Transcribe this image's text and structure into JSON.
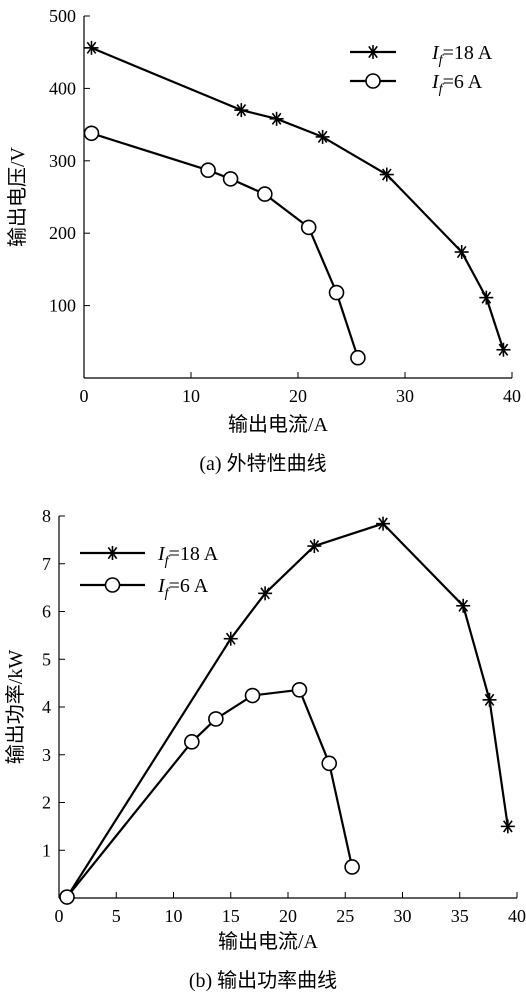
{
  "chart_data": [
    {
      "type": "line",
      "caption": "(a) 外特性曲线",
      "xlabel": "输出电流/A",
      "ylabel": "输出电压/V",
      "xlim": [
        0,
        40
      ],
      "ylim": [
        0,
        500
      ],
      "xticks": [
        0,
        10,
        20,
        30,
        40
      ],
      "yticks": [
        100,
        200,
        300,
        400,
        500
      ],
      "grid": false,
      "legend_position": "top-right",
      "series": [
        {
          "legend_main": "I",
          "legend_sub": "f",
          "legend_rest": "=18 A",
          "marker": "asterisk",
          "x": [
            0.7,
            14.7,
            18.0,
            22.3,
            28.3,
            35.3,
            37.6,
            39.2
          ],
          "y": [
            456,
            370,
            358,
            333,
            281,
            174,
            111,
            39
          ]
        },
        {
          "legend_main": "I",
          "legend_sub": "f",
          "legend_rest": "=6 A",
          "marker": "circle",
          "x": [
            0.7,
            11.6,
            13.7,
            16.9,
            21.0,
            23.6,
            25.6
          ],
          "y": [
            338,
            287,
            275,
            254,
            208,
            118,
            28
          ]
        }
      ]
    },
    {
      "type": "line",
      "caption": "(b) 输出功率曲线",
      "xlabel": "输出电流/A",
      "ylabel": "输出功率/kW",
      "xlim": [
        0,
        40
      ],
      "ylim": [
        0,
        8
      ],
      "xticks": [
        0,
        5,
        10,
        15,
        20,
        25,
        30,
        35,
        40
      ],
      "yticks": [
        1,
        2,
        3,
        4,
        5,
        6,
        7,
        8
      ],
      "grid": false,
      "legend_position": "top-left",
      "series": [
        {
          "legend_main": "I",
          "legend_sub": "f",
          "legend_rest": "=18 A",
          "marker": "asterisk",
          "x": [
            0.7,
            15.0,
            18.0,
            22.3,
            28.3,
            35.3,
            37.6,
            39.2
          ],
          "y": [
            0.02,
            5.43,
            6.38,
            7.37,
            7.84,
            6.12,
            4.15,
            1.5
          ]
        },
        {
          "legend_main": "I",
          "legend_sub": "f",
          "legend_rest": "=6 A",
          "marker": "circle",
          "x": [
            0.7,
            11.6,
            13.7,
            16.9,
            21.0,
            23.6,
            25.6
          ],
          "y": [
            0.02,
            3.27,
            3.75,
            4.24,
            4.36,
            2.82,
            0.65
          ]
        }
      ]
    }
  ]
}
